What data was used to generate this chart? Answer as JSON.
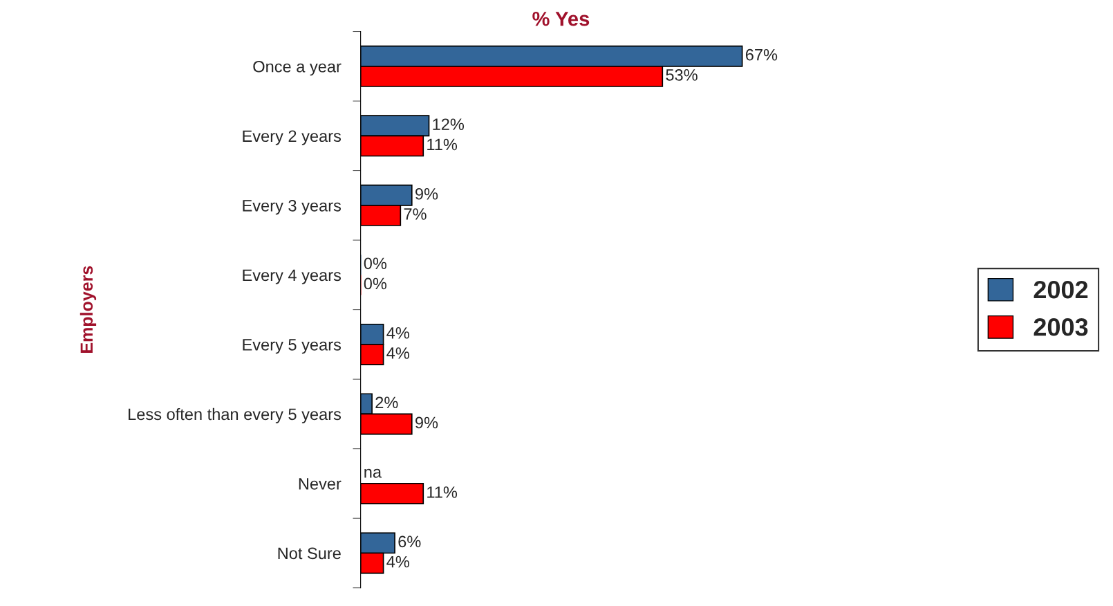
{
  "chart_data": {
    "type": "bar",
    "orientation": "horizontal",
    "title": "% Yes",
    "ylabel": "Employers",
    "categories": [
      "Once a year",
      "Every 2 years",
      "Every 3 years",
      "Every 4 years",
      "Every 5 years",
      "Less often than every 5 years",
      "Never",
      "Not Sure"
    ],
    "series": [
      {
        "name": "2002",
        "color": "#336699",
        "values": [
          67,
          12,
          9,
          0,
          4,
          2,
          null,
          6
        ],
        "value_labels": [
          "67%",
          "12%",
          "9%",
          "0%",
          "4%",
          "2%",
          "na",
          "6%"
        ]
      },
      {
        "name": "2003",
        "color": "#ff0000",
        "values": [
          53,
          11,
          7,
          0,
          4,
          9,
          11,
          4
        ],
        "value_labels": [
          "53%",
          "11%",
          "7%",
          "0%",
          "4%",
          "9%",
          "11%",
          "4%"
        ]
      }
    ],
    "legend": "right",
    "grid": false
  }
}
